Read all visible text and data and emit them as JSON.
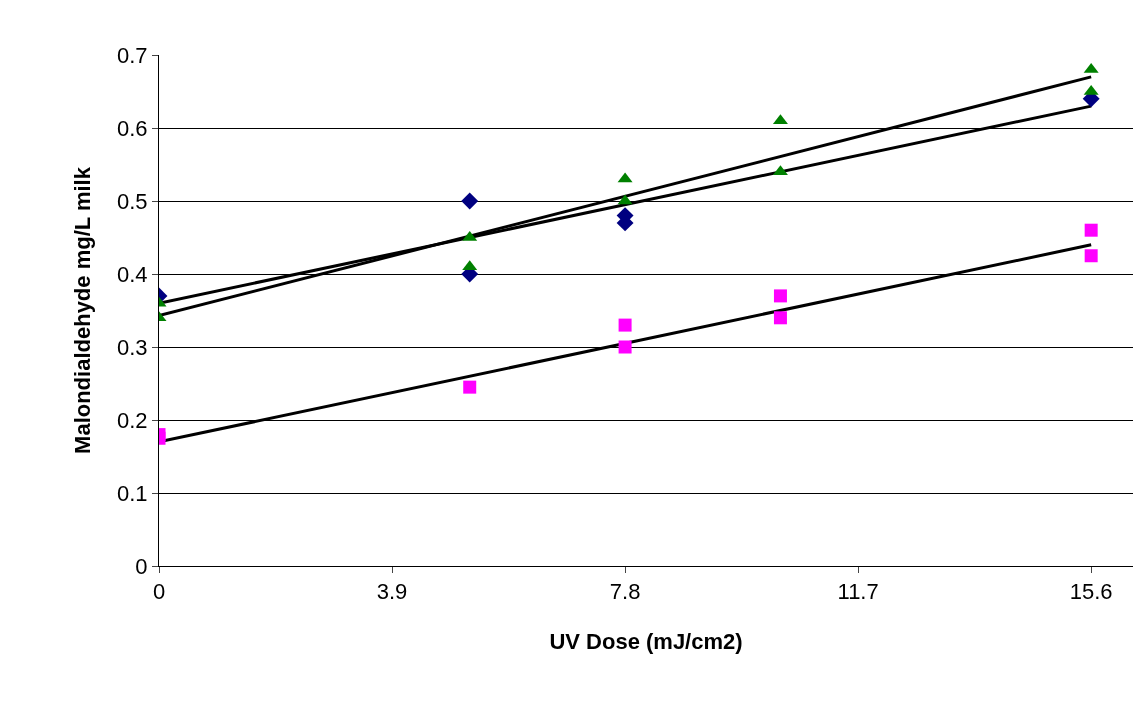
{
  "chart_data": {
    "type": "scatter",
    "xlabel": "UV Dose (mJ/cm2)",
    "ylabel": "Malondialdehyde mg/L milk",
    "xlim": [
      0,
      16.3
    ],
    "xticks": [
      0,
      3.9,
      7.8,
      11.7,
      15.6
    ],
    "ylim": [
      0,
      0.7
    ],
    "yticks": [
      0,
      0.1,
      0.2,
      0.3,
      0.4,
      0.5,
      0.6,
      0.7
    ],
    "grid": "y",
    "series": [
      {
        "color": "#000080",
        "marker": "diamond",
        "x": [
          0,
          5.2,
          5.2,
          7.8,
          7.8,
          10.4,
          15.6
        ],
        "values": [
          0.37,
          0.5,
          0.4,
          0.48,
          0.47,
          null,
          0.64
        ]
      },
      {
        "color": "#ff00ff",
        "marker": "square",
        "x": [
          0,
          0,
          5.2,
          7.8,
          7.8,
          10.4,
          10.4,
          15.6,
          15.6
        ],
        "values": [
          0.18,
          0.175,
          0.245,
          0.33,
          0.3,
          0.37,
          0.34,
          0.46,
          0.425
        ]
      },
      {
        "color": "#008000",
        "marker": "triangle",
        "x": [
          0,
          0,
          5.2,
          5.2,
          7.8,
          7.8,
          10.4,
          10.4,
          15.6,
          15.6
        ],
        "values": [
          0.36,
          0.34,
          0.45,
          0.41,
          0.53,
          0.5,
          0.61,
          0.54,
          0.68,
          0.65
        ]
      },
      {
        "type": "line",
        "color": "#000000",
        "marker": "none",
        "x": [
          0,
          15.6
        ],
        "values": [
          0.36,
          0.63
        ]
      },
      {
        "type": "line",
        "color": "#000000",
        "marker": "none",
        "x": [
          0,
          15.6
        ],
        "values": [
          0.17,
          0.44
        ]
      },
      {
        "type": "line",
        "color": "#000000",
        "marker": "none",
        "x": [
          0,
          15.6
        ],
        "values": [
          0.343,
          0.67
        ]
      }
    ]
  }
}
